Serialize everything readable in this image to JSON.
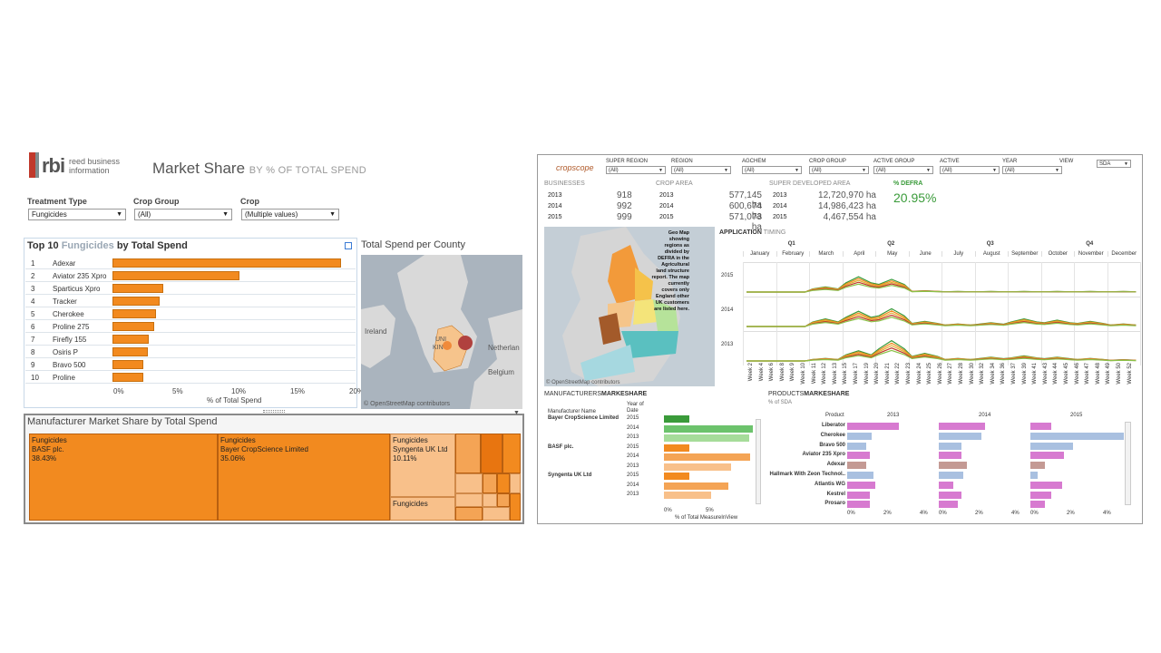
{
  "left": {
    "logo": {
      "brand": "rbi",
      "subtitle": "reed business information"
    },
    "title": "Market Share",
    "subtitle": "BY % OF TOTAL SPEND",
    "filters": [
      {
        "label": "Treatment Type",
        "value": "Fungicides"
      },
      {
        "label": "Crop Group",
        "value": "(All)"
      },
      {
        "label": "Crop",
        "value": "(Multiple values)"
      }
    ],
    "top10": {
      "title_pre": "Top 10",
      "title_hl": "Fungicides",
      "title_post": "by Total Spend",
      "axis_label": "% of Total Spend",
      "ticks": [
        "0%",
        "5%",
        "10%",
        "15%",
        "20%"
      ],
      "rows": [
        {
          "rank": "1",
          "name": "Adexar",
          "value": 19.4
        },
        {
          "rank": "2",
          "name": "Aviator 235 Xpro",
          "value": 10.8
        },
        {
          "rank": "3",
          "name": "Sparticus Xpro",
          "value": 4.3
        },
        {
          "rank": "4",
          "name": "Tracker",
          "value": 4.0
        },
        {
          "rank": "5",
          "name": "Cherokee",
          "value": 3.7
        },
        {
          "rank": "6",
          "name": "Proline 275",
          "value": 3.5
        },
        {
          "rank": "7",
          "name": "Firefly 155",
          "value": 3.1
        },
        {
          "rank": "8",
          "name": "Osiris P",
          "value": 3.0
        },
        {
          "rank": "9",
          "name": "Bravo 500",
          "value": 2.6
        },
        {
          "rank": "10",
          "name": "Proline",
          "value": 2.6
        }
      ]
    },
    "map": {
      "title": "Total Spend per County",
      "labels": [
        "Ireland",
        "Netherlan",
        "Belgium",
        "UNI",
        "KIN"
      ],
      "credit": "© OpenStreetMap contributors"
    },
    "treemap": {
      "title": "Manufacturer Market Share by Total Spend",
      "cells": [
        {
          "type": "Fungicides",
          "name": "BASF plc.",
          "share": "38.43%"
        },
        {
          "type": "Fungicides",
          "name": "Bayer CropScience Limited",
          "share": "35.06%"
        },
        {
          "type": "Fungicides",
          "name": "Syngenta UK Ltd",
          "share": "10.11%"
        },
        {
          "type": "Fungicides",
          "name": "",
          "share": ""
        }
      ]
    }
  },
  "right": {
    "logo": "cropscope",
    "filters": [
      {
        "label": "SUPER REGION",
        "value": "(All)"
      },
      {
        "label": "REGION",
        "value": "(All)"
      },
      {
        "label": "AGCHEM",
        "value": "(All)"
      },
      {
        "label": "CROP GROUP",
        "value": "(All)"
      },
      {
        "label": "ACTIVE GROUP",
        "value": "(All)"
      },
      {
        "label": "ACTIVE",
        "value": "(All)"
      },
      {
        "label": "YEAR",
        "value": "(All)"
      },
      {
        "label": "VIEW",
        "value": "SDA"
      }
    ],
    "kpis": {
      "businesses": {
        "label": "BUSINESSES",
        "rows": [
          [
            "2013",
            "918"
          ],
          [
            "2014",
            "992"
          ],
          [
            "2015",
            "999"
          ]
        ]
      },
      "crop_area": {
        "label": "CROP AREA",
        "rows": [
          [
            "2013",
            "577,145 ha"
          ],
          [
            "2014",
            "600,674 ha"
          ],
          [
            "2015",
            "571,073 ha"
          ]
        ]
      },
      "sda": {
        "label": "SUPER DEVELOPED AREA",
        "rows": [
          [
            "2013",
            "12,720,970 ha"
          ],
          [
            "2014",
            "14,986,423 ha"
          ],
          [
            "2015",
            "4,467,554 ha"
          ]
        ]
      },
      "defra": {
        "label": "% DEFRA",
        "value": "20.95%"
      }
    },
    "geo_note": "Geo Map showing regions as divided by DEFRA in the Agricultural land structure report. The map currently covers only England other UK customers are listed here.",
    "map_credit": "© OpenStreetMap contributors",
    "timing": {
      "title_a": "APPLICATION",
      "title_b": "TIMING",
      "quarters": [
        "Q1",
        "Q2",
        "Q3",
        "Q4"
      ],
      "months": [
        "January",
        "February",
        "March",
        "April",
        "May",
        "June",
        "July",
        "August",
        "September",
        "October",
        "November",
        "December"
      ],
      "years": [
        "2015",
        "2014",
        "2013"
      ],
      "weeks": [
        "Week 2",
        "Week 4",
        "Week 6",
        "Week 8",
        "Week 9",
        "Week 10",
        "Week 11",
        "Week 12",
        "Week 13",
        "Week 15",
        "Week 17",
        "Week 19",
        "Week 20",
        "Week 21",
        "Week 22",
        "Week 23",
        "Week 24",
        "Week 25",
        "Week 26",
        "Week 27",
        "Week 28",
        "Week 30",
        "Week 32",
        "Week 34",
        "Week 36",
        "Week 37",
        "Week 39",
        "Week 41",
        "Week 43",
        "Week 44",
        "Week 45",
        "Week 46",
        "Week 47",
        "Week 48",
        "Week 49",
        "Week 50",
        "Week 52"
      ]
    },
    "manufacturers": {
      "title_a": "MANUFACTURERS",
      "title_b": "MARKESHARE",
      "col1": "Manufacturer Name",
      "col2": "Year of Date",
      "axis": "% of Total MeasureInView",
      "ticks": [
        "0%",
        "5%"
      ],
      "groups": [
        {
          "name": "Bayer CropScience Limited",
          "years": [
            "2015",
            "2014",
            "2013"
          ],
          "values": [
            2.4,
            8.5,
            8.2
          ],
          "colors": [
            "#3a9b3a",
            "#6cc36c",
            "#a6dc9a"
          ]
        },
        {
          "name": "BASF plc.",
          "years": [
            "2015",
            "2014",
            "2013"
          ],
          "values": [
            2.4,
            8.3,
            6.4
          ],
          "colors": [
            "#f28a1f",
            "#f4a455",
            "#f8c08a"
          ]
        },
        {
          "name": "Syngenta UK Ltd",
          "years": [
            "2015",
            "2014",
            "2013"
          ],
          "values": [
            2.4,
            6.2,
            4.5
          ],
          "colors": [
            "#f28a1f",
            "#f4a455",
            "#f8c08a"
          ]
        }
      ]
    },
    "products": {
      "title_a": "PRODUCTS",
      "title_b": "MARKESHARE",
      "sub": "% of SDA",
      "col": "Product",
      "years": [
        "2013",
        "2014",
        "2015"
      ],
      "ticks": [
        "0%",
        "2%",
        "4%"
      ],
      "rows": [
        {
          "name": "Liberator",
          "v": [
            2.8,
            2.5,
            1.1
          ],
          "color": "#d77ad0"
        },
        {
          "name": "Cherokee",
          "v": [
            1.3,
            2.3,
            5.0
          ],
          "color": "#a9c0e0"
        },
        {
          "name": "Bravo 500",
          "v": [
            1.0,
            1.2,
            2.3
          ],
          "color": "#a9c0e0"
        },
        {
          "name": "Aviator 235 Xpro",
          "v": [
            1.2,
            1.2,
            1.8
          ],
          "color": "#d77ad0"
        },
        {
          "name": "Adexar",
          "v": [
            1.0,
            1.5,
            0.8
          ],
          "color": "#c49a94"
        },
        {
          "name": "Hallmark With Zeon Technol..",
          "v": [
            1.4,
            1.3,
            0.4
          ],
          "color": "#a9c0e0"
        },
        {
          "name": "Atlantis WG",
          "v": [
            1.5,
            0.8,
            1.7
          ],
          "color": "#d77ad0"
        },
        {
          "name": "Kestrel",
          "v": [
            1.2,
            1.2,
            1.1
          ],
          "color": "#d77ad0"
        },
        {
          "name": "Prosaro",
          "v": [
            1.2,
            1.0,
            0.8
          ],
          "color": "#d77ad0"
        }
      ]
    }
  }
}
